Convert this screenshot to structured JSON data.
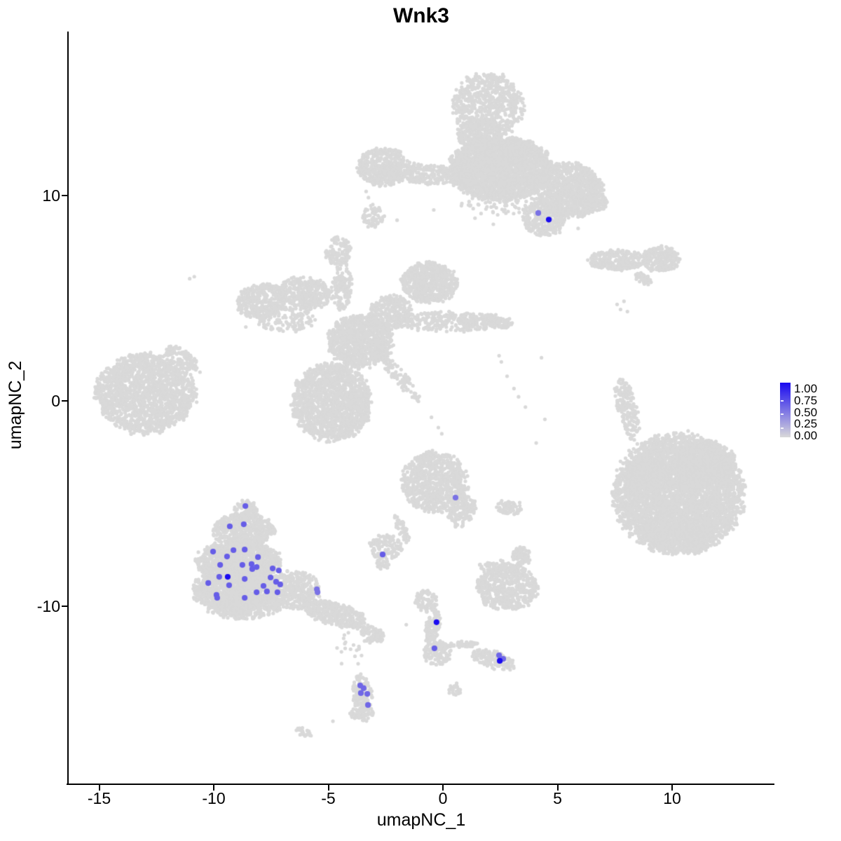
{
  "title": "Wnk3",
  "axes": {
    "x": {
      "label": "umapNC_1",
      "tick_values": [
        -15,
        -10,
        -5,
        0,
        5,
        10
      ],
      "tick_labels": [
        "-15",
        "-10",
        "-5",
        "0",
        "5",
        "10"
      ]
    },
    "y": {
      "label": "umapNC_2",
      "tick_values": [
        10,
        0,
        -10
      ],
      "tick_labels": [
        "10",
        "0",
        "-10"
      ]
    }
  },
  "legend": {
    "labels": [
      "1.00",
      "0.75",
      "0.50",
      "0.25",
      "0.00"
    ],
    "values": [
      1.0,
      0.75,
      0.5,
      0.25,
      0.0
    ],
    "color_high": "#1A0AF0",
    "color_low": "#D9D9D9"
  },
  "chart_data": {
    "type": "scatter",
    "title": "Wnk3",
    "xlabel": "umapNC_1",
    "ylabel": "umapNC_2",
    "xlim": [
      -16.4,
      14.4
    ],
    "ylim": [
      -18.6,
      18.0
    ],
    "x_ticks": [
      -15,
      -10,
      -5,
      0,
      5,
      10
    ],
    "y_ticks": [
      10,
      0,
      -10
    ],
    "grid": false,
    "legend_position": "right",
    "background_point_color": "#D9D9D9",
    "expression_scale": {
      "min": 0.0,
      "max": 1.0,
      "low_color": "#D9D9D9",
      "high_color": "#1A0AF0"
    },
    "cluster_format": "name, center_x, center_y, radius_x, radius_y, rotation_deg, n_points",
    "background_clusters": [
      {
        "name": "top-stem",
        "c": [
          1.95,
          14.35
        ],
        "r": [
          1.55,
          1.65
        ],
        "a": 0,
        "k": 700
      },
      {
        "name": "top-stem-neck",
        "c": [
          1.6,
          12.95
        ],
        "r": [
          1.0,
          0.8
        ],
        "a": 0,
        "k": 260
      },
      {
        "name": "top-body-main",
        "c": [
          2.5,
          11.3
        ],
        "r": [
          2.3,
          1.55
        ],
        "a": 0,
        "k": 2600
      },
      {
        "name": "top-left-chain",
        "c": [
          -0.9,
          11.05
        ],
        "r": [
          1.7,
          0.5
        ],
        "a": -5,
        "k": 240
      },
      {
        "name": "top-left-arm",
        "c": [
          -2.6,
          11.4
        ],
        "r": [
          1.15,
          0.95
        ],
        "a": 0,
        "k": 430
      },
      {
        "name": "top-body-right",
        "c": [
          5.5,
          10.3
        ],
        "r": [
          1.5,
          1.35
        ],
        "a": -20,
        "k": 950
      },
      {
        "name": "top-right-tip",
        "c": [
          6.6,
          9.7
        ],
        "r": [
          0.6,
          0.5
        ],
        "a": 0,
        "k": 110
      },
      {
        "name": "top-hang-lobe",
        "c": [
          4.4,
          8.9
        ],
        "r": [
          0.95,
          0.9
        ],
        "a": 0,
        "k": 300
      },
      {
        "name": "top-under-scatter",
        "c": [
          2.6,
          9.6
        ],
        "r": [
          1.9,
          0.55
        ],
        "a": 0,
        "k": 70
      },
      {
        "name": "small-c",
        "c": [
          -3.05,
          9.0
        ],
        "r": [
          0.5,
          0.55
        ],
        "a": 0,
        "k": 70
      },
      {
        "name": "blob-d",
        "c": [
          -4.55,
          7.3
        ],
        "r": [
          0.6,
          0.7
        ],
        "a": 0,
        "k": 110
      },
      {
        "name": "blob-d-tail",
        "c": [
          -4.3,
          6.0
        ],
        "r": [
          0.32,
          0.95
        ],
        "a": 10,
        "k": 60
      },
      {
        "name": "x-arc-left",
        "c": [
          -7.9,
          4.85
        ],
        "r": [
          1.15,
          0.85
        ],
        "a": 10,
        "k": 380
      },
      {
        "name": "x-arc-right",
        "c": [
          -6.0,
          5.25
        ],
        "r": [
          1.2,
          0.8
        ],
        "a": -10,
        "k": 330
      },
      {
        "name": "x-arc-under",
        "c": [
          -6.9,
          3.95
        ],
        "r": [
          1.3,
          0.6
        ],
        "a": 0,
        "k": 130
      },
      {
        "name": "x-vert-chain",
        "c": [
          -4.45,
          5.3
        ],
        "r": [
          0.4,
          1.0
        ],
        "a": 5,
        "k": 90
      },
      {
        "name": "x-tr-blob",
        "c": [
          -0.6,
          5.75
        ],
        "r": [
          1.25,
          1.0
        ],
        "a": 0,
        "k": 650
      },
      {
        "name": "x-bridge",
        "c": [
          -2.3,
          4.3
        ],
        "r": [
          1.0,
          0.85
        ],
        "a": 30,
        "k": 300
      },
      {
        "name": "x-center",
        "c": [
          -3.6,
          2.9
        ],
        "r": [
          1.45,
          1.3
        ],
        "a": 0,
        "k": 950
      },
      {
        "name": "x-right-arm",
        "c": [
          0.3,
          3.85
        ],
        "r": [
          2.4,
          0.5
        ],
        "a": 0,
        "k": 300
      },
      {
        "name": "x-arm-clump1",
        "c": [
          1.1,
          3.9
        ],
        "r": [
          0.45,
          0.35
        ],
        "a": 0,
        "k": 55
      },
      {
        "name": "x-arm-clump2",
        "c": [
          2.1,
          3.95
        ],
        "r": [
          0.4,
          0.3
        ],
        "a": 0,
        "k": 45
      },
      {
        "name": "x-arm-clump3",
        "c": [
          2.7,
          3.8
        ],
        "r": [
          0.35,
          0.3
        ],
        "a": 0,
        "k": 35
      },
      {
        "name": "x-diag-arm",
        "c": [
          -1.85,
          1.1
        ],
        "r": [
          0.3,
          1.4
        ],
        "a": 38,
        "k": 100
      },
      {
        "name": "x-bottom-lobe",
        "c": [
          -4.85,
          -0.05
        ],
        "r": [
          1.75,
          1.9
        ],
        "a": 0,
        "k": 1500
      },
      {
        "name": "far-left-main",
        "c": [
          -13.0,
          0.35
        ],
        "r": [
          2.2,
          1.95
        ],
        "a": 0,
        "k": 1700
      },
      {
        "name": "far-left-arm",
        "c": [
          -11.4,
          2.1
        ],
        "r": [
          0.9,
          0.4
        ],
        "a": -38,
        "k": 110
      },
      {
        "name": "right-chain",
        "c": [
          7.6,
          6.85
        ],
        "r": [
          1.3,
          0.5
        ],
        "a": 0,
        "k": 280
      },
      {
        "name": "right-chain-end",
        "c": [
          9.5,
          6.9
        ],
        "r": [
          0.85,
          0.65
        ],
        "a": 0,
        "k": 250
      },
      {
        "name": "right-diag",
        "c": [
          8.75,
          5.95
        ],
        "r": [
          0.45,
          0.25
        ],
        "a": -35,
        "k": 45
      },
      {
        "name": "right-vert",
        "c": [
          8.05,
          -0.4
        ],
        "r": [
          0.45,
          1.6
        ],
        "a": 12,
        "k": 170
      },
      {
        "name": "big-right-main",
        "c": [
          10.3,
          -4.5
        ],
        "r": [
          2.85,
          2.95
        ],
        "a": 0,
        "k": 4200
      },
      {
        "name": "big-right-tr",
        "c": [
          11.4,
          -3.1
        ],
        "r": [
          1.4,
          1.2
        ],
        "a": 0,
        "k": 650
      },
      {
        "name": "big-right-left",
        "c": [
          8.9,
          -3.6
        ],
        "r": [
          0.9,
          1.0
        ],
        "a": 0,
        "k": 330
      },
      {
        "name": "big-right-bottom",
        "c": [
          10.3,
          -6.4
        ],
        "r": [
          1.7,
          1.0
        ],
        "a": 0,
        "k": 450
      },
      {
        "name": "center-j-main",
        "c": [
          -0.35,
          -3.95
        ],
        "r": [
          1.45,
          1.5
        ],
        "a": 0,
        "k": 850
      },
      {
        "name": "center-j-tail",
        "c": [
          0.85,
          -5.35
        ],
        "r": [
          0.55,
          0.85
        ],
        "a": -25,
        "k": 150
      },
      {
        "name": "center-jk-arm",
        "c": [
          -1.8,
          -6.2
        ],
        "r": [
          0.22,
          0.8
        ],
        "a": 20,
        "k": 45
      },
      {
        "name": "k-hook",
        "c": [
          -2.5,
          -7.1
        ],
        "r": [
          0.75,
          0.6
        ],
        "a": 0,
        "k": 130
      },
      {
        "name": "k-low",
        "c": [
          -2.65,
          -7.95
        ],
        "r": [
          0.32,
          0.27
        ],
        "a": 0,
        "k": 30
      },
      {
        "name": "l-small",
        "c": [
          2.85,
          -5.2
        ],
        "r": [
          0.6,
          0.32
        ],
        "a": -15,
        "k": 70
      },
      {
        "name": "m-small",
        "c": [
          3.4,
          -7.6
        ],
        "r": [
          0.42,
          0.48
        ],
        "a": 0,
        "k": 80
      },
      {
        "name": "n-blob",
        "c": [
          2.8,
          -9.1
        ],
        "r": [
          1.35,
          1.1
        ],
        "a": 0,
        "k": 550
      },
      {
        "name": "n-top",
        "c": [
          2.4,
          -8.1
        ],
        "r": [
          0.9,
          0.35
        ],
        "a": 0,
        "k": 70
      },
      {
        "name": "o-apex",
        "c": [
          -8.6,
          -5.3
        ],
        "r": [
          0.55,
          0.45
        ],
        "a": 0,
        "k": 90
      },
      {
        "name": "o-upper",
        "c": [
          -8.7,
          -6.3
        ],
        "r": [
          1.35,
          0.85
        ],
        "a": 0,
        "k": 550
      },
      {
        "name": "o-mid",
        "c": [
          -8.9,
          -7.8
        ],
        "r": [
          1.85,
          1.05
        ],
        "a": 0,
        "k": 1000
      },
      {
        "name": "o-lower",
        "c": [
          -9.0,
          -9.2
        ],
        "r": [
          2.0,
          1.0
        ],
        "a": 0,
        "k": 1100
      },
      {
        "name": "o-bottom",
        "c": [
          -8.7,
          -10.1
        ],
        "r": [
          1.6,
          0.55
        ],
        "a": 0,
        "k": 330
      },
      {
        "name": "o-right",
        "c": [
          -6.6,
          -9.2
        ],
        "r": [
          1.25,
          0.95
        ],
        "a": 0,
        "k": 430
      },
      {
        "name": "o-tail",
        "c": [
          -4.7,
          -10.4
        ],
        "r": [
          1.5,
          0.55
        ],
        "a": -17,
        "k": 360
      },
      {
        "name": "o-tail-tip",
        "c": [
          -3.1,
          -11.4
        ],
        "r": [
          0.55,
          0.4
        ],
        "a": -20,
        "k": 90
      },
      {
        "name": "o-below-scatter",
        "c": [
          -4.2,
          -12.0
        ],
        "r": [
          0.6,
          0.85
        ],
        "a": 0,
        "k": 14
      },
      {
        "name": "p-vert",
        "c": [
          -3.5,
          -14.4
        ],
        "r": [
          0.45,
          1.1
        ],
        "a": 8,
        "k": 170
      },
      {
        "name": "p-bottom",
        "c": [
          -3.55,
          -15.2
        ],
        "r": [
          0.5,
          0.45
        ],
        "a": 0,
        "k": 60
      },
      {
        "name": "q-top",
        "c": [
          -0.75,
          -9.75
        ],
        "r": [
          0.5,
          0.55
        ],
        "a": 0,
        "k": 90
      },
      {
        "name": "q-stem",
        "c": [
          -0.45,
          -11.0
        ],
        "r": [
          0.3,
          0.85
        ],
        "a": -10,
        "k": 110
      },
      {
        "name": "q-bottom",
        "c": [
          -0.2,
          -12.3
        ],
        "r": [
          0.65,
          0.6
        ],
        "a": 0,
        "k": 140
      },
      {
        "name": "q-arm",
        "c": [
          0.9,
          -11.85
        ],
        "r": [
          0.7,
          0.15
        ],
        "a": 0,
        "k": 45
      },
      {
        "name": "r-diag",
        "c": [
          2.2,
          -12.6
        ],
        "r": [
          1.0,
          0.42
        ],
        "a": -18,
        "k": 150
      },
      {
        "name": "s-small",
        "c": [
          0.5,
          -14.1
        ],
        "r": [
          0.28,
          0.28
        ],
        "a": 0,
        "k": 25
      },
      {
        "name": "t-small",
        "c": [
          -6.05,
          -16.15
        ],
        "r": [
          0.38,
          0.2
        ],
        "a": -30,
        "k": 25
      }
    ],
    "background_singles": [
      [
        -11.05,
        5.95
      ],
      [
        -10.85,
        6.05
      ],
      [
        -3.25,
        9.9
      ],
      [
        -3.35,
        10.2
      ],
      [
        5.9,
        8.4
      ],
      [
        5.1,
        8.2
      ],
      [
        1.4,
        8.9
      ],
      [
        2.2,
        8.6
      ],
      [
        -0.4,
        9.3
      ],
      [
        4.3,
        2.1
      ],
      [
        4.07,
        -2.05
      ],
      [
        3.35,
        -4.95
      ],
      [
        2.45,
        2.2
      ],
      [
        2.55,
        1.9
      ],
      [
        2.8,
        1.2
      ],
      [
        3.1,
        0.6
      ],
      [
        3.3,
        0.2
      ],
      [
        3.6,
        -0.3
      ],
      [
        7.6,
        4.7
      ],
      [
        7.9,
        4.85
      ],
      [
        7.75,
        4.45
      ],
      [
        8.05,
        4.35
      ],
      [
        8.35,
        -1.9
      ],
      [
        8.55,
        -2.4
      ],
      [
        8.65,
        -2.9
      ],
      [
        8.8,
        -3.3
      ],
      [
        -8.6,
        3.6
      ],
      [
        -8.4,
        4.1
      ],
      [
        -10.6,
        1.4
      ],
      [
        -1.6,
        -10.9
      ],
      [
        -4.3,
        -11.4
      ],
      [
        -4.25,
        -11.75
      ],
      [
        -3.55,
        -12.4
      ],
      [
        -3.7,
        -12.8
      ],
      [
        -4.8,
        -15.6
      ],
      [
        0.6,
        -13.75
      ],
      [
        -0.5,
        -0.8
      ],
      [
        -0.2,
        -1.3
      ],
      [
        -0.05,
        -1.6
      ],
      [
        4.45,
        -0.9
      ],
      [
        -2.0,
        8.8
      ]
    ],
    "expressing_cells": [
      {
        "x": 4.16,
        "y": 9.15,
        "value": 0.5
      },
      {
        "x": 4.62,
        "y": 8.83,
        "value": 1.0
      },
      {
        "x": -8.62,
        "y": -5.12,
        "value": 0.6
      },
      {
        "x": -9.3,
        "y": -6.11,
        "value": 0.6
      },
      {
        "x": -8.69,
        "y": -6.01,
        "value": 0.6
      },
      {
        "x": -10.03,
        "y": -7.34,
        "value": 0.6
      },
      {
        "x": -9.14,
        "y": -7.27,
        "value": 0.6
      },
      {
        "x": -8.65,
        "y": -7.24,
        "value": 0.6
      },
      {
        "x": -9.42,
        "y": -7.58,
        "value": 0.6
      },
      {
        "x": -8.07,
        "y": -7.61,
        "value": 0.6
      },
      {
        "x": -9.72,
        "y": -7.99,
        "value": 0.6
      },
      {
        "x": -8.75,
        "y": -7.99,
        "value": 0.6
      },
      {
        "x": -8.35,
        "y": -7.95,
        "value": 0.6
      },
      {
        "x": -8.32,
        "y": -8.19,
        "value": 0.6
      },
      {
        "x": -8.13,
        "y": -8.09,
        "value": 0.6
      },
      {
        "x": -7.43,
        "y": -8.16,
        "value": 0.6
      },
      {
        "x": -7.16,
        "y": -8.26,
        "value": 0.6
      },
      {
        "x": -9.76,
        "y": -8.57,
        "value": 0.6
      },
      {
        "x": -9.39,
        "y": -8.57,
        "value": 1.0
      },
      {
        "x": -10.24,
        "y": -8.87,
        "value": 0.6
      },
      {
        "x": -8.65,
        "y": -8.67,
        "value": 0.6
      },
      {
        "x": -9.33,
        "y": -8.98,
        "value": 0.6
      },
      {
        "x": -7.52,
        "y": -8.6,
        "value": 0.6
      },
      {
        "x": -7.28,
        "y": -8.81,
        "value": 0.6
      },
      {
        "x": -7.1,
        "y": -8.94,
        "value": 0.6
      },
      {
        "x": -7.83,
        "y": -9.01,
        "value": 0.6
      },
      {
        "x": -8.13,
        "y": -9.32,
        "value": 0.6
      },
      {
        "x": -7.68,
        "y": -9.28,
        "value": 0.6
      },
      {
        "x": -9.88,
        "y": -9.45,
        "value": 0.6
      },
      {
        "x": -9.85,
        "y": -9.59,
        "value": 0.6
      },
      {
        "x": -8.65,
        "y": -9.59,
        "value": 0.6
      },
      {
        "x": -7.22,
        "y": -9.32,
        "value": 0.6
      },
      {
        "x": -5.5,
        "y": -9.18,
        "value": 0.5
      },
      {
        "x": -5.47,
        "y": -9.32,
        "value": 0.5
      },
      {
        "x": 0.55,
        "y": -4.71,
        "value": 0.5
      },
      {
        "x": -2.63,
        "y": -7.48,
        "value": 0.6
      },
      {
        "x": -0.28,
        "y": -10.78,
        "value": 1.0
      },
      {
        "x": -0.37,
        "y": -12.05,
        "value": 0.6
      },
      {
        "x": 2.45,
        "y": -12.39,
        "value": 0.55
      },
      {
        "x": 2.63,
        "y": -12.56,
        "value": 0.55
      },
      {
        "x": 2.48,
        "y": -12.66,
        "value": 1.0
      },
      {
        "x": -3.61,
        "y": -13.86,
        "value": 0.55
      },
      {
        "x": -3.46,
        "y": -13.99,
        "value": 0.55
      },
      {
        "x": -3.58,
        "y": -14.23,
        "value": 0.55
      },
      {
        "x": -3.3,
        "y": -14.27,
        "value": 0.55
      },
      {
        "x": -3.27,
        "y": -14.81,
        "value": 0.55
      }
    ]
  }
}
